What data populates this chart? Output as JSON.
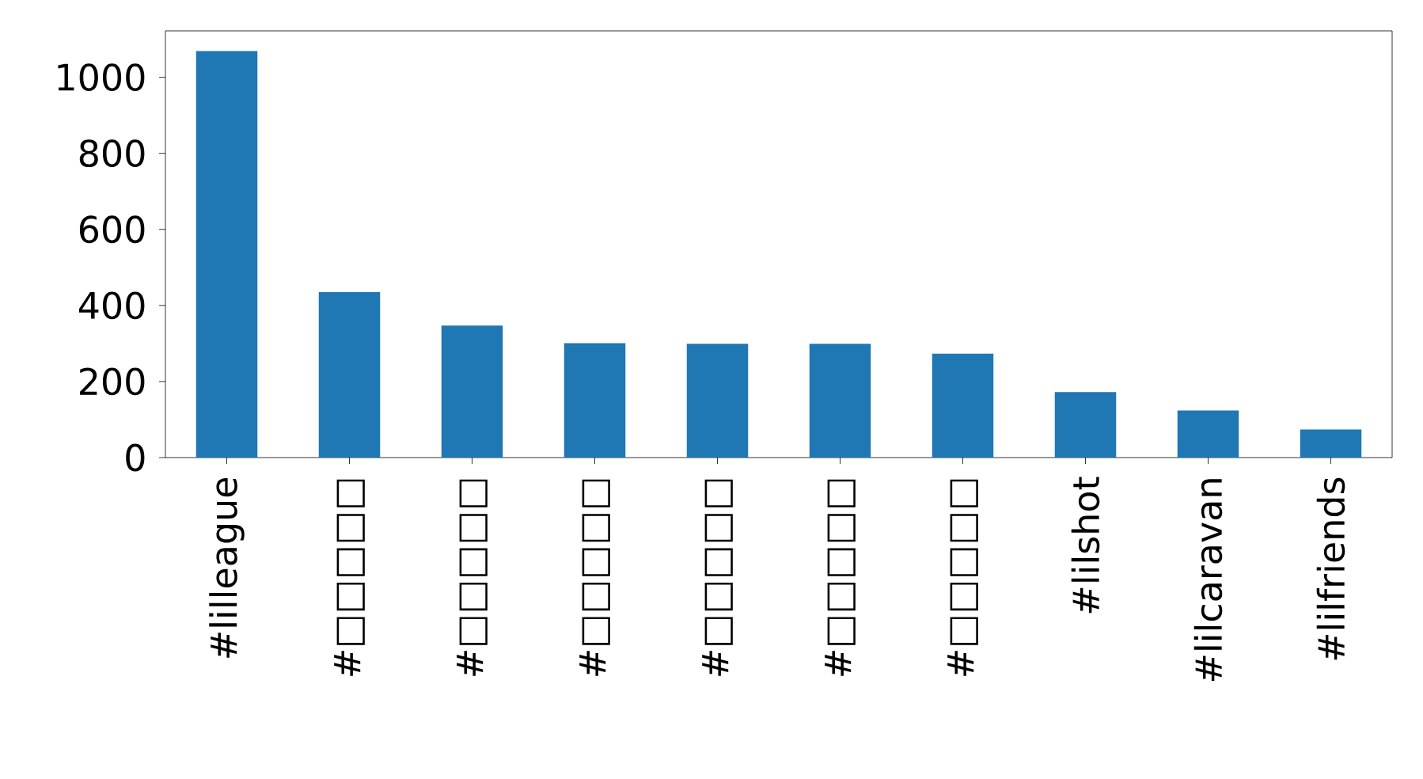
{
  "chart_data": {
    "type": "bar",
    "categories": [
      "#lilleague",
      "#□□□□□",
      "#□□□□□",
      "#□□□□□",
      "#□□□□□",
      "#□□□□□",
      "#□□□□□",
      "#lilshot",
      "#lilcaravan",
      "#lilfriends"
    ],
    "values": [
      1069,
      435,
      347,
      301,
      299,
      299,
      273,
      172,
      124,
      74
    ],
    "color": "#1f77b4",
    "ylim": [
      0,
      1122
    ],
    "yticks": [
      0,
      200,
      400,
      600,
      800,
      1000
    ]
  }
}
